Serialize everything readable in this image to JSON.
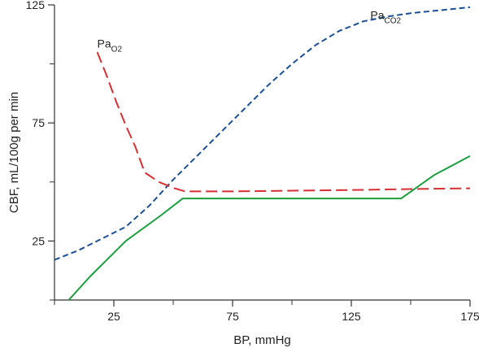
{
  "chart_data": {
    "type": "line",
    "title": "",
    "xlabel": "BP, mmHg",
    "ylabel": "CBF, mL/100g per min",
    "xlim": [
      0,
      175
    ],
    "ylim": [
      0,
      125
    ],
    "x_ticks": [
      25,
      75,
      125,
      175
    ],
    "y_ticks": [
      25,
      75,
      125
    ],
    "x_minor_ticks": [
      0,
      50,
      100,
      150
    ],
    "grid": false,
    "legend": "none",
    "series": [
      {
        "id": "paco2",
        "name": "Pa",
        "name_sub": "CO2",
        "color": "#1c4f93",
        "line_style": "dashed",
        "x": [
          0,
          10,
          20,
          30,
          40,
          50,
          60,
          70,
          80,
          90,
          100,
          110,
          120,
          130,
          140,
          150,
          160,
          170,
          175
        ],
        "y": [
          17,
          21,
          26,
          31,
          40,
          51,
          61,
          71,
          81,
          91,
          100,
          108,
          114,
          118,
          120,
          121.5,
          122.5,
          123.5,
          124
        ]
      },
      {
        "id": "pao2",
        "name": "Pa",
        "name_sub": "O2",
        "color": "#d62f34",
        "line_style": "dashed",
        "x": [
          18,
          22,
          26,
          30,
          34,
          38,
          44,
          50,
          55,
          75,
          100,
          125,
          150,
          175
        ],
        "y": [
          105,
          95,
          84,
          74,
          65,
          54,
          50,
          47.5,
          46,
          46,
          46.3,
          46.6,
          47,
          47.3
        ]
      },
      {
        "id": "green",
        "name": "",
        "color": "#1b9e3e",
        "line_style": "solid",
        "x": [
          6,
          15,
          30,
          45,
          54,
          75,
          100,
          125,
          146,
          160,
          175
        ],
        "y": [
          0,
          10,
          25,
          36,
          43,
          43,
          43,
          43,
          43,
          53,
          61
        ]
      }
    ],
    "annotations": [
      {
        "series": "pao2",
        "text": "Pa",
        "sub": "O2",
        "x": 18,
        "y": 107
      },
      {
        "series": "paco2",
        "text": "Pa",
        "sub": "CO2",
        "x": 133,
        "y": 119
      }
    ]
  }
}
